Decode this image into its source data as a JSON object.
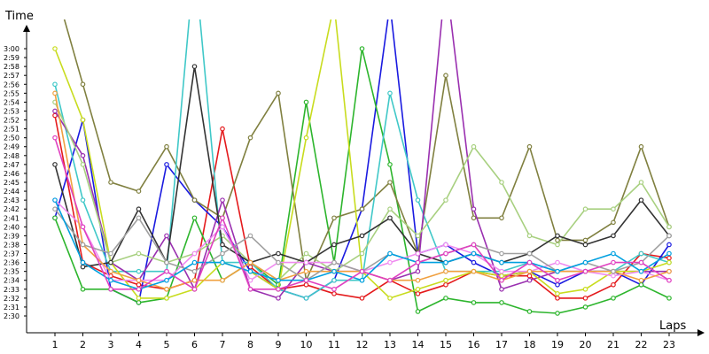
{
  "chart_data": {
    "type": "line",
    "ylabel": "Time",
    "xlabel": "Laps",
    "x": [
      1,
      2,
      3,
      4,
      5,
      6,
      7,
      8,
      9,
      10,
      11,
      12,
      13,
      14,
      15,
      16,
      17,
      18,
      19,
      20,
      21,
      22,
      23
    ],
    "y_ticks": [
      "2:30",
      "2:31",
      "2:32",
      "2:33",
      "2:34",
      "2:35",
      "2:36",
      "2:37",
      "2:38",
      "2:39",
      "2:40",
      "2:41",
      "2:42",
      "2:43",
      "2:44",
      "2:45",
      "2:46",
      "2:47",
      "2:48",
      "2:49",
      "2:50",
      "2:51",
      "2:52",
      "2:53",
      "2:54",
      "2:55",
      "2:56",
      "2:57",
      "2:58",
      "2:59",
      "3:00"
    ],
    "ylim": [
      149,
      182
    ],
    "grid": false,
    "legend": "none",
    "series": [
      {
        "color": "#e41a1c",
        "values": [
          172.5,
          156,
          154.5,
          153.5,
          153,
          154,
          171,
          155.5,
          153,
          153.5,
          152.5,
          152,
          154,
          152.5,
          153.5,
          155,
          154.5,
          154.5,
          152,
          152,
          153.5,
          157,
          156.5
        ]
      },
      {
        "color": "#1a1ae0",
        "values": [
          161,
          172,
          153,
          151.5,
          167,
          163,
          160,
          155,
          153,
          152,
          154,
          162,
          185,
          157,
          158,
          156,
          154.5,
          155,
          153.5,
          155,
          155,
          153.5,
          158
        ]
      },
      {
        "color": "#2db52d",
        "values": [
          161,
          153,
          153,
          151.5,
          152,
          161,
          154,
          156,
          153.5,
          174,
          156,
          180,
          167,
          150.5,
          152,
          151.5,
          151.5,
          150.5,
          150.3,
          151,
          152,
          153.5,
          152
        ]
      },
      {
        "color": "#808040",
        "values": [
          187,
          176,
          165,
          164,
          169,
          163,
          161,
          170,
          175,
          154,
          161,
          162,
          165,
          157,
          177,
          161,
          161,
          169,
          158.5,
          158.5,
          160.5,
          169,
          160
        ]
      },
      {
        "color": "#40c8c8",
        "values": [
          176,
          163,
          155,
          155,
          155,
          190,
          156,
          156,
          153,
          152,
          154,
          154,
          175,
          163,
          155,
          155,
          155,
          156,
          155,
          155,
          155,
          157,
          156
        ]
      },
      {
        "color": "#9a30b0",
        "values": [
          173,
          168,
          156,
          154,
          159,
          153,
          163,
          153,
          152,
          156,
          155,
          155,
          154,
          155,
          188,
          162,
          153,
          154,
          155,
          155,
          155,
          155,
          155
        ]
      },
      {
        "color": "#c8dc1e",
        "values": [
          180,
          172,
          156,
          152,
          152,
          153,
          156,
          155,
          153,
          170,
          185,
          155,
          152,
          153,
          154,
          155,
          154.5,
          155,
          152.5,
          153,
          155,
          155,
          156
        ]
      },
      {
        "color": "#a8d080",
        "values": [
          174,
          167,
          156,
          157,
          156,
          157,
          159,
          156,
          154,
          157,
          155,
          157,
          162,
          159,
          163,
          169,
          165,
          159,
          158,
          162,
          162,
          165,
          160
        ]
      },
      {
        "color": "#333333",
        "values": [
          167,
          155.5,
          156,
          162,
          156,
          178,
          158,
          156,
          157,
          156,
          158,
          159,
          161,
          157,
          156,
          157,
          156,
          157,
          159,
          158,
          159,
          163,
          159
        ]
      },
      {
        "color": "#f08cf0",
        "values": [
          163,
          160,
          154,
          154,
          154,
          157,
          160,
          154,
          156,
          156,
          156,
          155,
          156,
          157,
          158,
          157,
          155,
          155,
          156,
          155,
          154.5,
          155,
          154
        ]
      },
      {
        "color": "#f0a040",
        "values": [
          175,
          158,
          155,
          154,
          153,
          154,
          154,
          156,
          154,
          155,
          155,
          155,
          154,
          154,
          155,
          155,
          154,
          155,
          155,
          155,
          155,
          154,
          155
        ]
      },
      {
        "color": "#a0a0a0",
        "values": [
          162,
          158,
          157,
          161,
          156,
          155,
          157,
          159,
          156,
          154,
          156,
          155,
          157,
          156,
          157,
          158,
          157,
          157,
          155,
          156,
          155,
          156,
          159
        ]
      },
      {
        "color": "#00a0e0",
        "values": [
          163,
          156,
          154,
          153,
          154,
          156,
          156,
          155,
          154,
          154,
          155,
          154,
          157,
          156,
          156,
          157,
          156,
          156,
          155,
          156,
          157,
          155,
          157
        ]
      },
      {
        "color": "#e040c0",
        "values": [
          170,
          160,
          153,
          153,
          155,
          153,
          161,
          153,
          153,
          154,
          153,
          155,
          154,
          156,
          157,
          158,
          154,
          156,
          154,
          155,
          156,
          156,
          154
        ]
      }
    ]
  }
}
